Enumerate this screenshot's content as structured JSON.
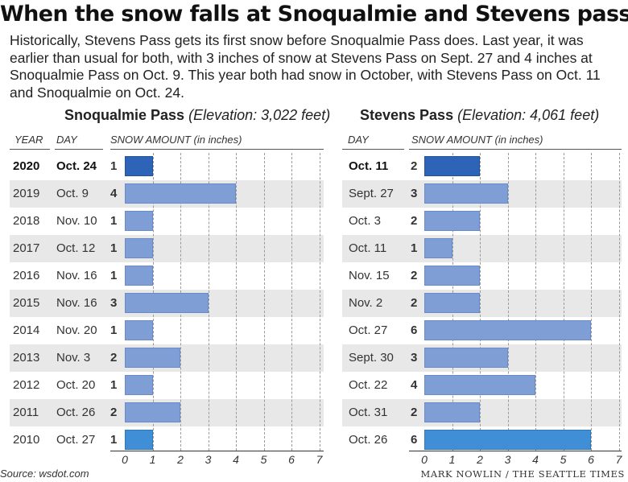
{
  "title": "When the snow falls at Snoqualmie and Stevens passes",
  "intro": "Historically, Stevens Pass gets its first snow before Snoqualmie Pass does. Last year, it was earlier than usual for both, with 3 inches of snow at Stevens Pass on Sept. 27 and 4 inches at Snoqualmie Pass on Oct. 9. This year both had snow in October, with Stevens Pass on Oct. 11 and Snoqualmie on Oct. 24.",
  "source": "Source: wsdot.com",
  "credit": "MARK NOWLIN / THE SEATTLE TIMES",
  "colors": {
    "bar": "#7f9ed6",
    "current_bar": "#2d64b8",
    "band": "#e8e8e8"
  },
  "headers": {
    "year": "YEAR",
    "day": "DAY",
    "snow_amount": "SNOW AMOUNT (in inches)"
  },
  "chart_data": [
    {
      "type": "bar",
      "orientation": "horizontal",
      "name": "Snoqualmie Pass",
      "elevation": "(Elevation: 3,022 feet)",
      "categories": [
        "2020",
        "2019",
        "2018",
        "2017",
        "2016",
        "2015",
        "2014",
        "2013",
        "2012",
        "2011",
        "2010"
      ],
      "days": [
        "Oct. 24",
        "Oct. 9",
        "Nov. 10",
        "Oct. 12",
        "Nov. 16",
        "Nov. 16",
        "Nov. 20",
        "Nov. 3",
        "Oct. 20",
        "Oct. 26",
        "Oct. 27"
      ],
      "values": [
        1,
        4,
        1,
        1,
        1,
        3,
        1,
        2,
        1,
        2,
        1
      ],
      "xlabel": "SNOW AMOUNT (in inches)",
      "xlim": [
        0,
        7
      ],
      "xticks": [
        "0",
        "1",
        "2",
        "3",
        "4",
        "5",
        "6",
        "7"
      ],
      "grid": true
    },
    {
      "type": "bar",
      "orientation": "horizontal",
      "name": "Stevens Pass",
      "elevation": "(Elevation: 4,061 feet)",
      "categories": [
        "2020",
        "2019",
        "2018",
        "2017",
        "2016",
        "2015",
        "2014",
        "2013",
        "2012",
        "2011",
        "2010"
      ],
      "days": [
        "Oct. 11",
        "Sept. 27",
        "Oct. 3",
        "Oct. 11",
        "Nov. 15",
        "Nov. 2",
        "Oct. 27",
        "Sept. 30",
        "Oct. 22",
        "Oct. 31",
        "Oct. 26"
      ],
      "values": [
        2,
        3,
        2,
        1,
        2,
        2,
        6,
        3,
        4,
        2,
        6
      ],
      "xlabel": "SNOW AMOUNT (in inches)",
      "xlim": [
        0,
        7
      ],
      "xticks": [
        "0",
        "1",
        "2",
        "3",
        "4",
        "5",
        "6",
        "7"
      ],
      "grid": true
    }
  ]
}
